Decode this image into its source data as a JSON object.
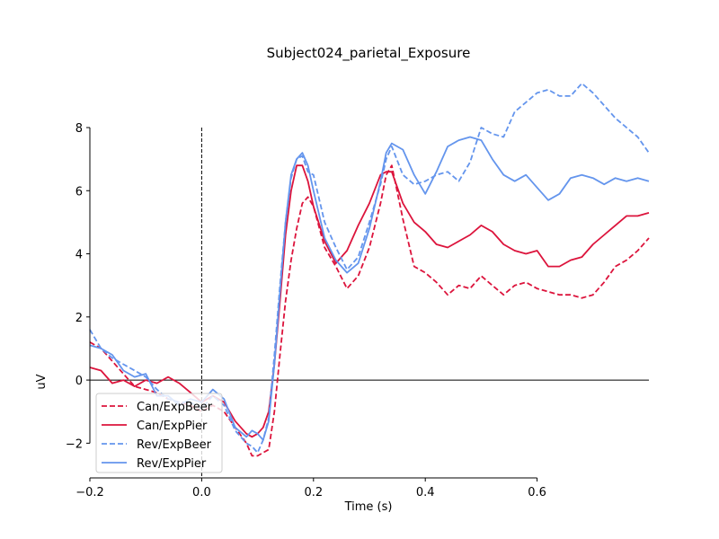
{
  "chart_data": {
    "type": "line",
    "title": "Subject024_parietal_Exposure",
    "xlabel": "Time (s)",
    "ylabel": "uV",
    "xlim": [
      -0.2,
      0.8
    ],
    "ylim": [
      -3.1,
      8.0
    ],
    "xticks": [
      -0.2,
      0.0,
      0.2,
      0.4,
      0.6
    ],
    "xtick_labels": [
      "−0.2",
      "0.0",
      "0.2",
      "0.4",
      "0.6"
    ],
    "yticks": [
      -2,
      0,
      2,
      4,
      6,
      8
    ],
    "ytick_labels": [
      "−2",
      "0",
      "2",
      "4",
      "6",
      "8"
    ],
    "grid": false,
    "legend_position": "lower-left",
    "event_marker_x": 0.0,
    "zero_line_y": 0,
    "series": [
      {
        "name": "Can/ExpBeer",
        "color": "#dc143c",
        "dash": true,
        "x": [
          -0.2,
          -0.18,
          -0.16,
          -0.14,
          -0.12,
          -0.1,
          -0.08,
          -0.06,
          -0.04,
          -0.02,
          0.0,
          0.02,
          0.04,
          0.06,
          0.08,
          0.09,
          0.1,
          0.11,
          0.12,
          0.13,
          0.14,
          0.15,
          0.16,
          0.17,
          0.18,
          0.19,
          0.2,
          0.22,
          0.24,
          0.26,
          0.28,
          0.3,
          0.32,
          0.33,
          0.34,
          0.36,
          0.38,
          0.4,
          0.42,
          0.44,
          0.46,
          0.48,
          0.5,
          0.52,
          0.54,
          0.56,
          0.58,
          0.6,
          0.62,
          0.64,
          0.66,
          0.68,
          0.7,
          0.72,
          0.74,
          0.76,
          0.78,
          0.8
        ],
        "y": [
          1.2,
          1.0,
          0.6,
          0.2,
          -0.2,
          -0.3,
          -0.4,
          -0.6,
          -0.7,
          -0.8,
          -1.0,
          -0.8,
          -1.0,
          -1.5,
          -2.0,
          -2.4,
          -2.4,
          -2.3,
          -2.2,
          -1.0,
          0.8,
          2.5,
          3.8,
          4.8,
          5.6,
          5.8,
          5.5,
          4.2,
          3.6,
          2.9,
          3.3,
          4.2,
          5.6,
          6.5,
          6.8,
          5.1,
          3.6,
          3.4,
          3.1,
          2.7,
          3.0,
          2.9,
          3.3,
          3.0,
          2.7,
          3.0,
          3.1,
          2.9,
          2.8,
          2.7,
          2.7,
          2.6,
          2.7,
          3.1,
          3.6,
          3.8,
          4.1,
          4.5
        ]
      },
      {
        "name": "Can/ExpPier",
        "color": "#dc143c",
        "dash": false,
        "x": [
          -0.2,
          -0.18,
          -0.16,
          -0.14,
          -0.12,
          -0.1,
          -0.08,
          -0.06,
          -0.04,
          -0.02,
          0.0,
          0.02,
          0.04,
          0.06,
          0.08,
          0.09,
          0.1,
          0.11,
          0.12,
          0.13,
          0.14,
          0.15,
          0.16,
          0.17,
          0.18,
          0.19,
          0.2,
          0.22,
          0.24,
          0.26,
          0.28,
          0.3,
          0.32,
          0.33,
          0.34,
          0.36,
          0.38,
          0.4,
          0.42,
          0.44,
          0.46,
          0.48,
          0.5,
          0.52,
          0.54,
          0.56,
          0.58,
          0.6,
          0.62,
          0.64,
          0.66,
          0.68,
          0.7,
          0.72,
          0.74,
          0.76,
          0.78,
          0.8
        ],
        "y": [
          0.4,
          0.3,
          -0.1,
          0.0,
          -0.2,
          0.0,
          -0.1,
          0.1,
          -0.1,
          -0.4,
          -0.7,
          -0.5,
          -0.7,
          -1.3,
          -1.7,
          -1.8,
          -1.7,
          -1.5,
          -1.0,
          0.5,
          2.5,
          4.6,
          6.0,
          6.8,
          6.8,
          6.3,
          5.5,
          4.4,
          3.7,
          4.1,
          4.9,
          5.6,
          6.5,
          6.6,
          6.6,
          5.6,
          5.0,
          4.7,
          4.3,
          4.2,
          4.4,
          4.6,
          4.9,
          4.7,
          4.3,
          4.1,
          4.0,
          4.1,
          3.6,
          3.6,
          3.8,
          3.9,
          4.3,
          4.6,
          4.9,
          5.2,
          5.2,
          5.3
        ]
      },
      {
        "name": "Rev/ExpBeer",
        "color": "#6495ed",
        "dash": true,
        "x": [
          -0.2,
          -0.18,
          -0.16,
          -0.14,
          -0.12,
          -0.1,
          -0.08,
          -0.06,
          -0.04,
          -0.02,
          0.0,
          0.02,
          0.04,
          0.06,
          0.08,
          0.09,
          0.1,
          0.11,
          0.12,
          0.13,
          0.14,
          0.15,
          0.16,
          0.17,
          0.18,
          0.19,
          0.2,
          0.22,
          0.24,
          0.26,
          0.28,
          0.3,
          0.32,
          0.33,
          0.34,
          0.36,
          0.38,
          0.4,
          0.42,
          0.44,
          0.46,
          0.48,
          0.5,
          0.52,
          0.54,
          0.56,
          0.58,
          0.6,
          0.62,
          0.64,
          0.66,
          0.68,
          0.7,
          0.72,
          0.74,
          0.76,
          0.78,
          0.8
        ],
        "y": [
          1.6,
          1.0,
          0.7,
          0.5,
          0.3,
          0.1,
          -0.3,
          -0.6,
          -0.7,
          -0.7,
          -0.9,
          -0.5,
          -0.8,
          -1.6,
          -2.0,
          -2.1,
          -2.3,
          -1.9,
          -1.2,
          0.8,
          3.0,
          5.0,
          6.4,
          7.0,
          7.1,
          6.6,
          6.5,
          5.0,
          4.2,
          3.5,
          3.9,
          5.0,
          6.2,
          7.0,
          7.4,
          6.5,
          6.2,
          6.3,
          6.5,
          6.6,
          6.3,
          6.9,
          8.0,
          7.8,
          7.7,
          8.5,
          8.8,
          9.1,
          9.2,
          9.0,
          9.0,
          9.4,
          9.1,
          8.7,
          8.3,
          8.0,
          7.7,
          7.2
        ]
      },
      {
        "name": "Rev/ExpPier",
        "color": "#6495ed",
        "dash": false,
        "x": [
          -0.2,
          -0.18,
          -0.16,
          -0.14,
          -0.12,
          -0.1,
          -0.08,
          -0.06,
          -0.04,
          -0.02,
          0.0,
          0.02,
          0.04,
          0.06,
          0.08,
          0.09,
          0.1,
          0.11,
          0.12,
          0.13,
          0.14,
          0.15,
          0.16,
          0.17,
          0.18,
          0.19,
          0.2,
          0.22,
          0.24,
          0.26,
          0.28,
          0.3,
          0.32,
          0.33,
          0.34,
          0.36,
          0.38,
          0.4,
          0.42,
          0.44,
          0.46,
          0.48,
          0.5,
          0.52,
          0.54,
          0.56,
          0.58,
          0.6,
          0.62,
          0.64,
          0.66,
          0.68,
          0.7,
          0.72,
          0.74,
          0.76,
          0.78,
          0.8
        ],
        "y": [
          1.1,
          1.0,
          0.8,
          0.3,
          0.1,
          0.2,
          -0.5,
          -0.5,
          -0.8,
          -0.6,
          -0.7,
          -0.3,
          -0.6,
          -1.5,
          -1.8,
          -1.6,
          -1.7,
          -1.9,
          -1.3,
          0.5,
          2.8,
          5.0,
          6.5,
          7.0,
          7.2,
          6.8,
          6.0,
          4.5,
          3.8,
          3.4,
          3.7,
          4.8,
          6.3,
          7.2,
          7.5,
          7.3,
          6.5,
          5.9,
          6.6,
          7.4,
          7.6,
          7.7,
          7.6,
          7.0,
          6.5,
          6.3,
          6.5,
          6.1,
          5.7,
          5.9,
          6.4,
          6.5,
          6.4,
          6.2,
          6.4,
          6.3,
          6.4,
          6.3
        ]
      }
    ]
  }
}
